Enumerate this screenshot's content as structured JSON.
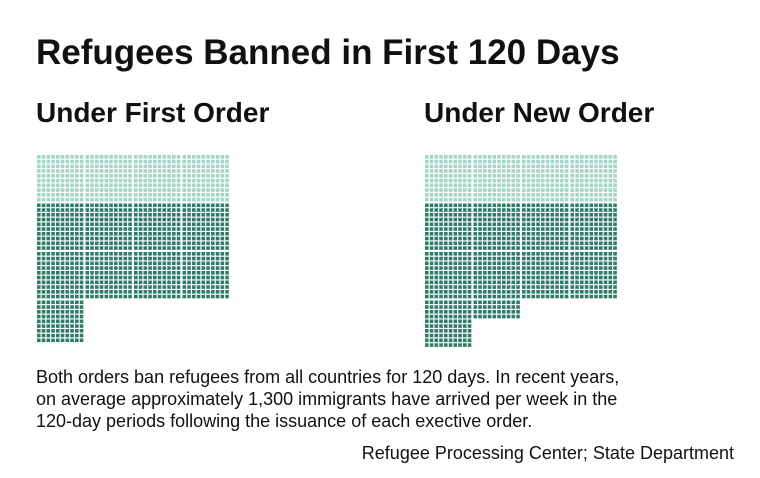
{
  "title": "Refugees Banned in First 120 Days",
  "chart_data": [
    {
      "type": "waffle",
      "title": "Under First Order",
      "series": [
        {
          "color": "#a3d6c8",
          "values": [
            400
          ]
        },
        {
          "color": "#2f7c69",
          "values": [
            890
          ]
        }
      ]
    },
    {
      "type": "waffle",
      "title": "Under New Order",
      "series": [
        {
          "color": "#a3d6c8",
          "values": [
            400
          ]
        },
        {
          "color": "#2f7c69",
          "values": [
            940
          ]
        }
      ]
    }
  ],
  "note": [
    "Both orders ban refugees from all countries for 120 days. In recent years,",
    "on average approximately 1,300 immigrants have arrived per week in the",
    "120-day periods following the issuance of each exective order."
  ],
  "source": "Refugee Processing Center; State Department"
}
